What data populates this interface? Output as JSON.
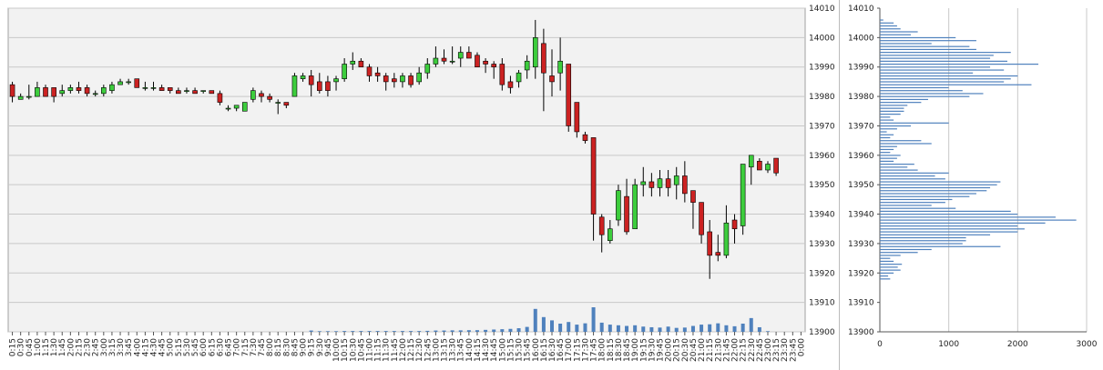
{
  "chart_data": [
    {
      "type": "candlestick",
      "ylim": [
        13900,
        14010
      ],
      "y_ticks": [
        13900,
        13910,
        13920,
        13930,
        13940,
        13950,
        13960,
        13970,
        13980,
        13990,
        14000,
        14010
      ],
      "x_labels": [
        "0:15",
        "0:30",
        "0:45",
        "1:00",
        "1:15",
        "1:30",
        "1:45",
        "2:00",
        "2:15",
        "2:30",
        "2:45",
        "3:00",
        "3:15",
        "3:30",
        "3:45",
        "4:00",
        "4:15",
        "4:30",
        "4:45",
        "5:00",
        "5:15",
        "5:30",
        "5:45",
        "6:00",
        "6:15",
        "6:30",
        "6:45",
        "7:00",
        "7:15",
        "7:30",
        "7:45",
        "8:00",
        "8:15",
        "8:30",
        "8:45",
        "9:00",
        "9:15",
        "9:30",
        "9:45",
        "10:00",
        "10:15",
        "10:30",
        "10:45",
        "11:00",
        "11:15",
        "11:30",
        "11:45",
        "12:00",
        "12:15",
        "12:30",
        "12:45",
        "13:00",
        "13:15",
        "13:30",
        "13:45",
        "14:00",
        "14:15",
        "14:30",
        "14:45",
        "15:00",
        "15:15",
        "15:30",
        "15:45",
        "16:00",
        "16:15",
        "16:30",
        "16:45",
        "17:00",
        "17:15",
        "17:30",
        "17:45",
        "18:00",
        "18:15",
        "18:30",
        "18:45",
        "19:00",
        "19:15",
        "19:30",
        "19:45",
        "20:00",
        "20:15",
        "20:30",
        "20:45",
        "21:00",
        "21:15",
        "21:30",
        "21:45",
        "22:00",
        "22:15",
        "22:30",
        "22:45",
        "23:00",
        "23:15",
        "23:30",
        "23:45",
        "0:00"
      ],
      "candles": [
        {
          "x": "0:15",
          "o": 13984,
          "h": 13985,
          "l": 13978,
          "c": 13980
        },
        {
          "x": "0:30",
          "o": 13979,
          "h": 13981,
          "l": 13979,
          "c": 13980
        },
        {
          "x": "0:45",
          "o": 13980,
          "h": 13984,
          "l": 13979,
          "c": 13980
        },
        {
          "x": "1:00",
          "o": 13980,
          "h": 13985,
          "l": 13980,
          "c": 13983
        },
        {
          "x": "1:15",
          "o": 13983,
          "h": 13984,
          "l": 13980,
          "c": 13980
        },
        {
          "x": "1:30",
          "o": 13983,
          "h": 13983,
          "l": 13978,
          "c": 13980
        },
        {
          "x": "1:45",
          "o": 13981,
          "h": 13984,
          "l": 13980,
          "c": 13982
        },
        {
          "x": "2:00",
          "o": 13982,
          "h": 13984,
          "l": 13981,
          "c": 13983
        },
        {
          "x": "2:15",
          "o": 13983,
          "h": 13985,
          "l": 13981,
          "c": 13982
        },
        {
          "x": "2:30",
          "o": 13983,
          "h": 13984,
          "l": 13980,
          "c": 13981
        },
        {
          "x": "2:45",
          "o": 13981,
          "h": 13982,
          "l": 13980,
          "c": 13981
        },
        {
          "x": "3:00",
          "o": 13981,
          "h": 13984,
          "l": 13980,
          "c": 13983
        },
        {
          "x": "3:15",
          "o": 13982,
          "h": 13985,
          "l": 13981,
          "c": 13984
        },
        {
          "x": "3:30",
          "o": 13984,
          "h": 13986,
          "l": 13984,
          "c": 13985
        },
        {
          "x": "3:45",
          "o": 13985,
          "h": 13986,
          "l": 13984,
          "c": 13985
        },
        {
          "x": "4:00",
          "o": 13986,
          "h": 13986,
          "l": 13983,
          "c": 13983
        },
        {
          "x": "4:15",
          "o": 13983,
          "h": 13985,
          "l": 13982,
          "c": 13983
        },
        {
          "x": "4:30",
          "o": 13983,
          "h": 13985,
          "l": 13982,
          "c": 13983
        },
        {
          "x": "4:45",
          "o": 13983,
          "h": 13984,
          "l": 13982,
          "c": 13982
        },
        {
          "x": "5:00",
          "o": 13983,
          "h": 13983,
          "l": 13981,
          "c": 13982
        },
        {
          "x": "5:15",
          "o": 13982,
          "h": 13983,
          "l": 13981,
          "c": 13981
        },
        {
          "x": "5:30",
          "o": 13982,
          "h": 13983,
          "l": 13981,
          "c": 13982
        },
        {
          "x": "5:45",
          "o": 13982,
          "h": 13983,
          "l": 13981,
          "c": 13981
        },
        {
          "x": "6:00",
          "o": 13982,
          "h": 13982,
          "l": 13981,
          "c": 13982
        },
        {
          "x": "6:15",
          "o": 13982,
          "h": 13982,
          "l": 13981,
          "c": 13981
        },
        {
          "x": "6:30",
          "o": 13981,
          "h": 13982,
          "l": 13977,
          "c": 13978
        },
        {
          "x": "6:45",
          "o": 13976,
          "h": 13977,
          "l": 13975,
          "c": 13976
        },
        {
          "x": "7:00",
          "o": 13976,
          "h": 13977,
          "l": 13975,
          "c": 13977
        },
        {
          "x": "7:15",
          "o": 13975,
          "h": 13978,
          "l": 13975,
          "c": 13978
        },
        {
          "x": "7:30",
          "o": 13979,
          "h": 13983,
          "l": 13978,
          "c": 13982
        },
        {
          "x": "7:45",
          "o": 13981,
          "h": 13982,
          "l": 13978,
          "c": 13980
        },
        {
          "x": "8:00",
          "o": 13980,
          "h": 13981,
          "l": 13978,
          "c": 13979
        },
        {
          "x": "8:15",
          "o": 13978,
          "h": 13979,
          "l": 13974,
          "c": 13978
        },
        {
          "x": "8:30",
          "o": 13978,
          "h": 13978,
          "l": 13976,
          "c": 13977
        },
        {
          "x": "8:45",
          "o": 13980,
          "h": 13988,
          "l": 13980,
          "c": 13987
        },
        {
          "x": "9:00",
          "o": 13986,
          "h": 13988,
          "l": 13985,
          "c": 13987
        },
        {
          "x": "9:15",
          "o": 13987,
          "h": 13989,
          "l": 13980,
          "c": 13984
        },
        {
          "x": "9:30",
          "o": 13985,
          "h": 13988,
          "l": 13981,
          "c": 13982
        },
        {
          "x": "9:45",
          "o": 13985,
          "h": 13987,
          "l": 13980,
          "c": 13982
        },
        {
          "x": "10:00",
          "o": 13985,
          "h": 13987,
          "l": 13982,
          "c": 13986
        },
        {
          "x": "10:15",
          "o": 13986,
          "h": 13993,
          "l": 13985,
          "c": 13991
        },
        {
          "x": "10:30",
          "o": 13991,
          "h": 13995,
          "l": 13989,
          "c": 13992
        },
        {
          "x": "10:45",
          "o": 13992,
          "h": 13993,
          "l": 13990,
          "c": 13990
        },
        {
          "x": "11:00",
          "o": 13990,
          "h": 13991,
          "l": 13985,
          "c": 13987
        },
        {
          "x": "11:15",
          "o": 13988,
          "h": 13990,
          "l": 13985,
          "c": 13987
        },
        {
          "x": "11:30",
          "o": 13987,
          "h": 13988,
          "l": 13982,
          "c": 13985
        },
        {
          "x": "11:45",
          "o": 13986,
          "h": 13988,
          "l": 13983,
          "c": 13985
        },
        {
          "x": "12:00",
          "o": 13985,
          "h": 13988,
          "l": 13983,
          "c": 13987
        },
        {
          "x": "12:15",
          "o": 13987,
          "h": 13988,
          "l": 13983,
          "c": 13984
        },
        {
          "x": "12:30",
          "o": 13985,
          "h": 13990,
          "l": 13984,
          "c": 13988
        },
        {
          "x": "12:45",
          "o": 13988,
          "h": 13993,
          "l": 13986,
          "c": 13991
        },
        {
          "x": "13:00",
          "o": 13991,
          "h": 13997,
          "l": 13990,
          "c": 13993
        },
        {
          "x": "13:15",
          "o": 13993,
          "h": 13996,
          "l": 13991,
          "c": 13992
        },
        {
          "x": "13:30",
          "o": 13992,
          "h": 13997,
          "l": 13991,
          "c": 13992
        },
        {
          "x": "13:45",
          "o": 13993,
          "h": 13997,
          "l": 13990,
          "c": 13995
        },
        {
          "x": "14:00",
          "o": 13995,
          "h": 13997,
          "l": 13993,
          "c": 13993
        },
        {
          "x": "14:15",
          "o": 13994,
          "h": 13995,
          "l": 13990,
          "c": 13990
        },
        {
          "x": "14:30",
          "o": 13992,
          "h": 13993,
          "l": 13988,
          "c": 13991
        },
        {
          "x": "14:45",
          "o": 13991,
          "h": 13992,
          "l": 13986,
          "c": 13990
        },
        {
          "x": "15:00",
          "o": 13991,
          "h": 13993,
          "l": 13982,
          "c": 13984
        },
        {
          "x": "15:15",
          "o": 13985,
          "h": 13987,
          "l": 13981,
          "c": 13983
        },
        {
          "x": "15:30",
          "o": 13985,
          "h": 13989,
          "l": 13983,
          "c": 13988
        },
        {
          "x": "15:45",
          "o": 13989,
          "h": 13994,
          "l": 13986,
          "c": 13992
        },
        {
          "x": "16:00",
          "o": 13990,
          "h": 14006,
          "l": 13986,
          "c": 14000
        },
        {
          "x": "16:15",
          "o": 13998,
          "h": 14003,
          "l": 13975,
          "c": 13988
        },
        {
          "x": "16:30",
          "o": 13987,
          "h": 13996,
          "l": 13980,
          "c": 13985
        },
        {
          "x": "16:45",
          "o": 13988,
          "h": 14000,
          "l": 13982,
          "c": 13992
        },
        {
          "x": "17:00",
          "o": 13991,
          "h": 13991,
          "l": 13968,
          "c": 13970
        },
        {
          "x": "17:15",
          "o": 13978,
          "h": 13978,
          "l": 13966,
          "c": 13968
        },
        {
          "x": "17:30",
          "o": 13967,
          "h": 13968,
          "l": 13964,
          "c": 13965
        },
        {
          "x": "17:45",
          "o": 13966,
          "h": 13966,
          "l": 13931,
          "c": 13940
        },
        {
          "x": "18:00",
          "o": 13939,
          "h": 13940,
          "l": 13927,
          "c": 13933
        },
        {
          "x": "18:15",
          "o": 13931,
          "h": 13938,
          "l": 13930,
          "c": 13935
        },
        {
          "x": "18:30",
          "o": 13938,
          "h": 13950,
          "l": 13936,
          "c": 13948
        },
        {
          "x": "18:45",
          "o": 13946,
          "h": 13952,
          "l": 13933,
          "c": 13934
        },
        {
          "x": "19:00",
          "o": 13935,
          "h": 13952,
          "l": 13935,
          "c": 13950
        },
        {
          "x": "19:15",
          "o": 13950,
          "h": 13956,
          "l": 13946,
          "c": 13951
        },
        {
          "x": "19:30",
          "o": 13951,
          "h": 13954,
          "l": 13946,
          "c": 13949
        },
        {
          "x": "19:45",
          "o": 13949,
          "h": 13955,
          "l": 13946,
          "c": 13952
        },
        {
          "x": "20:00",
          "o": 13952,
          "h": 13955,
          "l": 13946,
          "c": 13949
        },
        {
          "x": "20:15",
          "o": 13950,
          "h": 13956,
          "l": 13945,
          "c": 13953
        },
        {
          "x": "20:30",
          "o": 13953,
          "h": 13958,
          "l": 13944,
          "c": 13947
        },
        {
          "x": "20:45",
          "o": 13948,
          "h": 13948,
          "l": 13935,
          "c": 13944
        },
        {
          "x": "21:00",
          "o": 13944,
          "h": 13944,
          "l": 13930,
          "c": 13933
        },
        {
          "x": "21:15",
          "o": 13934,
          "h": 13938,
          "l": 13918,
          "c": 13926
        },
        {
          "x": "21:30",
          "o": 13927,
          "h": 13933,
          "l": 13924,
          "c": 13926
        },
        {
          "x": "21:45",
          "o": 13926,
          "h": 13943,
          "l": 13925,
          "c": 13937
        },
        {
          "x": "22:00",
          "o": 13938,
          "h": 13940,
          "l": 13930,
          "c": 13935
        },
        {
          "x": "22:15",
          "o": 13936,
          "h": 13957,
          "l": 13933,
          "c": 13957
        },
        {
          "x": "22:30",
          "o": 13956,
          "h": 13960,
          "l": 13950,
          "c": 13960
        },
        {
          "x": "22:45",
          "o": 13958,
          "h": 13959,
          "l": 13955,
          "c": 13955
        },
        {
          "x": "23:00",
          "o": 13955,
          "h": 13958,
          "l": 13954,
          "c": 13957
        },
        {
          "x": "23:15",
          "o": 13959,
          "h": 13959,
          "l": 13953,
          "c": 13954
        }
      ],
      "volume_max": 1000,
      "volume": [
        0,
        0,
        0,
        0,
        0,
        0,
        0,
        0,
        0,
        0,
        0,
        0,
        0,
        0,
        0,
        0,
        0,
        0,
        0,
        0,
        0,
        0,
        0,
        0,
        0,
        0,
        0,
        0,
        0,
        0,
        0,
        0,
        0,
        0,
        0,
        0,
        40,
        20,
        20,
        20,
        25,
        25,
        25,
        25,
        25,
        25,
        25,
        25,
        25,
        25,
        30,
        40,
        40,
        45,
        45,
        50,
        50,
        60,
        70,
        80,
        90,
        110,
        150,
        700,
        450,
        350,
        250,
        300,
        220,
        260,
        750,
        280,
        220,
        200,
        180,
        200,
        160,
        140,
        130,
        160,
        120,
        130,
        180,
        220,
        230,
        260,
        200,
        170,
        250,
        420,
        140,
        20,
        0,
        0,
        0,
        0
      ],
      "colors": {
        "up": "#3dcd3d",
        "down": "#cc2222",
        "volume": "#4f81bd",
        "grid": "#c8c8c8",
        "plot_bg": "#f2f2f2"
      }
    },
    {
      "type": "horizontal-bar",
      "xlim": [
        0,
        3000
      ],
      "x_ticks": [
        0,
        1000,
        2000,
        3000
      ],
      "ylim": [
        13900,
        14010
      ],
      "y_ticks": [
        13900,
        13910,
        13920,
        13930,
        13940,
        13950,
        13960,
        13970,
        13980,
        13990,
        14000,
        14010
      ],
      "price_levels": [
        13918,
        13919,
        13920,
        13921,
        13922,
        13923,
        13924,
        13925,
        13926,
        13927,
        13928,
        13929,
        13930,
        13931,
        13932,
        13933,
        13934,
        13935,
        13936,
        13937,
        13938,
        13939,
        13940,
        13941,
        13942,
        13943,
        13944,
        13945,
        13946,
        13947,
        13948,
        13949,
        13950,
        13951,
        13952,
        13953,
        13954,
        13955,
        13956,
        13957,
        13958,
        13959,
        13960,
        13961,
        13962,
        13963,
        13964,
        13965,
        13966,
        13967,
        13968,
        13969,
        13970,
        13971,
        13972,
        13973,
        13974,
        13975,
        13976,
        13977,
        13978,
        13979,
        13980,
        13981,
        13982,
        13983,
        13984,
        13985,
        13986,
        13987,
        13988,
        13989,
        13990,
        13991,
        13992,
        13993,
        13994,
        13995,
        13996,
        13997,
        13998,
        13999,
        14000,
        14001,
        14002,
        14003,
        14004,
        14005,
        14006
      ],
      "volumes": [
        150,
        120,
        200,
        300,
        260,
        320,
        200,
        150,
        300,
        550,
        750,
        1750,
        1200,
        1250,
        1250,
        1600,
        2000,
        2100,
        2000,
        2400,
        2850,
        2550,
        2000,
        1900,
        1100,
        750,
        950,
        1050,
        1300,
        1400,
        1550,
        1600,
        1700,
        1750,
        950,
        800,
        1000,
        550,
        400,
        500,
        200,
        250,
        300,
        150,
        200,
        250,
        750,
        600,
        150,
        200,
        100,
        250,
        450,
        1000,
        200,
        150,
        300,
        350,
        350,
        400,
        600,
        700,
        1300,
        1500,
        1200,
        1000,
        2200,
        1800,
        1900,
        2000,
        1350,
        1800,
        1600,
        2300,
        1850,
        1600,
        1650,
        1900,
        1400,
        1300,
        750,
        1400,
        1100,
        450,
        550,
        300,
        250,
        200,
        50
      ],
      "bar_color": "#4f81bd"
    }
  ]
}
